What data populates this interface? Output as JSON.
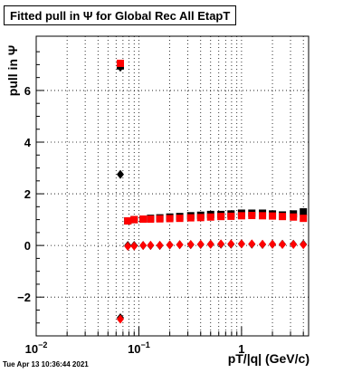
{
  "chart_data": {
    "type": "scatter",
    "title": "Fitted pull in  Ψ  for Global Rec All EtapT",
    "xlabel": "pT/|q| (GeV/c)",
    "ylabel": "pull in  Ψ",
    "xscale": "log",
    "xlim": [
      0.01,
      4.5
    ],
    "ylim": [
      -3.5,
      8.1
    ],
    "grid": true,
    "x_ticks": [
      {
        "value": 0.01,
        "base": "10",
        "exp": "−2"
      },
      {
        "value": 0.1,
        "base": "10",
        "exp": "−1"
      },
      {
        "value": 1,
        "base": "1",
        "exp": ""
      }
    ],
    "y_ticks": [
      {
        "value": -2,
        "label": "−2"
      },
      {
        "value": 0,
        "label": "0"
      },
      {
        "value": 2,
        "label": "2"
      },
      {
        "value": 4,
        "label": "4"
      },
      {
        "value": 6,
        "label": "6"
      }
    ],
    "series": [
      {
        "color": "#000000",
        "marker": "diamond",
        "points": [
          [
            0.066,
            6.9
          ],
          [
            0.066,
            2.75
          ],
          [
            0.066,
            -2.8
          ],
          [
            0.078,
            0.0
          ],
          [
            0.09,
            0.0
          ],
          [
            0.11,
            0.0
          ],
          [
            0.13,
            0.0
          ],
          [
            0.16,
            0.0
          ],
          [
            0.2,
            0.02
          ],
          [
            0.25,
            0.03
          ],
          [
            0.32,
            0.03
          ],
          [
            0.4,
            0.04
          ],
          [
            0.5,
            0.05
          ],
          [
            0.63,
            0.05
          ],
          [
            0.79,
            0.05
          ],
          [
            1.0,
            0.06
          ],
          [
            1.26,
            0.05
          ],
          [
            1.6,
            0.04
          ],
          [
            2.0,
            0.05
          ],
          [
            2.5,
            0.05
          ],
          [
            3.2,
            0.05
          ],
          [
            4.0,
            0.05
          ]
        ]
      },
      {
        "color": "#000000",
        "marker": "square",
        "points": [
          [
            0.066,
            6.95
          ],
          [
            0.078,
            0.95
          ],
          [
            0.09,
            1.0
          ],
          [
            0.11,
            1.02
          ],
          [
            0.13,
            1.05
          ],
          [
            0.16,
            1.07
          ],
          [
            0.2,
            1.1
          ],
          [
            0.25,
            1.12
          ],
          [
            0.32,
            1.15
          ],
          [
            0.4,
            1.17
          ],
          [
            0.5,
            1.2
          ],
          [
            0.63,
            1.2
          ],
          [
            0.79,
            1.22
          ],
          [
            1.0,
            1.25
          ],
          [
            1.26,
            1.25
          ],
          [
            1.6,
            1.25
          ],
          [
            2.0,
            1.22
          ],
          [
            2.5,
            1.18
          ],
          [
            3.2,
            1.22
          ],
          [
            4.0,
            1.3
          ]
        ]
      },
      {
        "color": "#ff0000",
        "marker": "diamond",
        "points": [
          [
            0.066,
            -2.85
          ],
          [
            0.078,
            -0.03
          ],
          [
            0.09,
            -0.02
          ],
          [
            0.11,
            0.0
          ],
          [
            0.13,
            0.01
          ],
          [
            0.16,
            0.01
          ],
          [
            0.2,
            0.02
          ],
          [
            0.25,
            0.03
          ],
          [
            0.32,
            0.04
          ],
          [
            0.4,
            0.05
          ],
          [
            0.5,
            0.05
          ],
          [
            0.63,
            0.06
          ],
          [
            0.79,
            0.06
          ],
          [
            1.0,
            0.06
          ],
          [
            1.26,
            0.06
          ],
          [
            1.6,
            0.05
          ],
          [
            2.0,
            0.05
          ],
          [
            2.5,
            0.04
          ],
          [
            3.2,
            0.04
          ],
          [
            4.0,
            0.03
          ]
        ]
      },
      {
        "color": "#ff0000",
        "marker": "square",
        "points": [
          [
            0.066,
            7.05
          ],
          [
            0.078,
            0.95
          ],
          [
            0.09,
            1.0
          ],
          [
            0.11,
            1.02
          ],
          [
            0.13,
            1.02
          ],
          [
            0.16,
            1.03
          ],
          [
            0.2,
            1.04
          ],
          [
            0.25,
            1.05
          ],
          [
            0.32,
            1.07
          ],
          [
            0.4,
            1.08
          ],
          [
            0.5,
            1.1
          ],
          [
            0.63,
            1.12
          ],
          [
            0.79,
            1.13
          ],
          [
            1.0,
            1.15
          ],
          [
            1.26,
            1.16
          ],
          [
            1.6,
            1.15
          ],
          [
            2.0,
            1.14
          ],
          [
            2.5,
            1.12
          ],
          [
            3.2,
            1.1
          ],
          [
            4.0,
            1.05
          ]
        ]
      }
    ]
  },
  "footer": {
    "timestamp": "Tue Apr 13 10:36:44 2021"
  }
}
